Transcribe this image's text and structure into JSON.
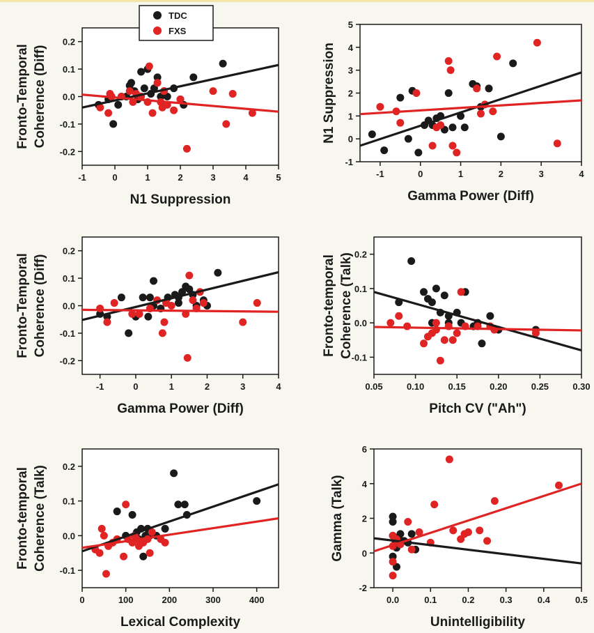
{
  "legend": {
    "entries": [
      {
        "label": "TDC",
        "color": "#1a1a1a"
      },
      {
        "label": "FXS",
        "color": "#e02424"
      }
    ]
  },
  "chart_data": [
    {
      "type": "scatter",
      "xlabel": "N1 Suppression",
      "ylabel": [
        "Fronto-Temporal",
        "Coherence (Diff)"
      ],
      "xlim": [
        -1,
        5
      ],
      "ylim": [
        -0.25,
        0.25
      ],
      "xticks": [
        -1,
        0,
        1,
        2,
        3,
        4,
        5
      ],
      "yticks": [
        0.2,
        0.1,
        0.0,
        -0.1,
        -0.2
      ],
      "xtick_labels": [
        "-1",
        "0",
        "1",
        "2",
        "3",
        "4",
        "5"
      ],
      "ytick_labels": [
        "0.2",
        "0.1",
        "0.0",
        "-0.1",
        "-0.2"
      ],
      "series": [
        {
          "name": "TDC",
          "color": "#1a1a1a",
          "x": [
            -0.5,
            -0.2,
            0.1,
            0.35,
            0.5,
            0.6,
            0.7,
            0.8,
            0.9,
            1.0,
            1.1,
            1.2,
            1.3,
            1.4,
            1.5,
            1.6,
            1.8,
            2.0,
            2.1,
            2.4,
            3.3,
            -0.05,
            0.2,
            0.45
          ],
          "y": [
            -0.03,
            -0.01,
            -0.03,
            0.0,
            0.05,
            0.02,
            -0.01,
            0.09,
            0.03,
            0.1,
            0.01,
            0.03,
            0.07,
            0.0,
            0.02,
            0.0,
            0.03,
            -0.01,
            -0.03,
            0.07,
            0.12,
            -0.1,
            0.0,
            0.04
          ]
        },
        {
          "name": "FXS",
          "color": "#e02424",
          "x": [
            -0.45,
            -0.15,
            -0.2,
            -0.1,
            0.2,
            0.45,
            0.55,
            0.65,
            0.8,
            1.0,
            1.05,
            1.15,
            1.3,
            1.4,
            1.45,
            1.5,
            1.6,
            1.8,
            2.0,
            2.2,
            3.0,
            3.4,
            3.6,
            4.2
          ],
          "y": [
            -0.04,
            0.01,
            -0.06,
            0.0,
            0.0,
            0.02,
            -0.02,
            0.01,
            0.0,
            -0.02,
            0.11,
            -0.06,
            0.05,
            -0.02,
            -0.04,
            0.02,
            -0.03,
            -0.05,
            -0.01,
            -0.19,
            0.02,
            -0.1,
            0.01,
            -0.06
          ]
        }
      ],
      "fits": [
        {
          "name": "TDC",
          "color": "#1a1a1a",
          "x": [
            -1,
            5
          ],
          "y": [
            -0.04,
            0.115
          ]
        },
        {
          "name": "FXS",
          "color": "#e02424",
          "x": [
            -1,
            5
          ],
          "y": [
            0.007,
            -0.055
          ]
        }
      ]
    },
    {
      "type": "scatter",
      "xlabel": "Gamma Power (Diff)",
      "ylabel": [
        "N1 Suppression"
      ],
      "xlim": [
        -1.5,
        4
      ],
      "ylim": [
        -1,
        5
      ],
      "xticks": [
        -1,
        0,
        1,
        2,
        3,
        4
      ],
      "yticks": [
        5,
        4,
        3,
        2,
        1,
        0,
        -1
      ],
      "xtick_labels": [
        "-1",
        "0",
        "1",
        "2",
        "3",
        "4"
      ],
      "ytick_labels": [
        "5",
        "4",
        "3",
        "2",
        "1",
        "0",
        "-1"
      ],
      "series": [
        {
          "name": "TDC",
          "color": "#1a1a1a",
          "x": [
            -1.2,
            -0.9,
            -0.5,
            -0.3,
            -0.2,
            0.1,
            0.2,
            0.3,
            0.4,
            0.5,
            0.6,
            0.7,
            0.8,
            1.0,
            1.1,
            1.3,
            1.4,
            1.5,
            1.7,
            2.0,
            2.3,
            -0.05
          ],
          "y": [
            0.2,
            -0.5,
            1.8,
            0.0,
            2.1,
            0.6,
            0.8,
            0.6,
            0.9,
            1.0,
            0.4,
            2.0,
            0.5,
            1.0,
            0.5,
            2.4,
            2.3,
            1.4,
            2.2,
            0.1,
            3.3,
            -0.6
          ]
        },
        {
          "name": "FXS",
          "color": "#e02424",
          "x": [
            -1.0,
            -0.6,
            -0.5,
            -0.1,
            0.3,
            0.4,
            0.5,
            0.7,
            0.75,
            0.8,
            0.9,
            1.4,
            1.5,
            1.6,
            1.8,
            1.9,
            2.9,
            3.4
          ],
          "y": [
            1.4,
            1.2,
            0.7,
            2.0,
            -0.3,
            0.5,
            0.6,
            3.4,
            3.0,
            -0.3,
            -0.6,
            2.2,
            1.1,
            1.5,
            1.2,
            3.6,
            4.2,
            -0.2
          ]
        }
      ],
      "fits": [
        {
          "name": "TDC",
          "color": "#1a1a1a",
          "x": [
            -1.5,
            4
          ],
          "y": [
            -0.3,
            2.9
          ]
        },
        {
          "name": "FXS",
          "color": "#e02424",
          "x": [
            -1.5,
            4
          ],
          "y": [
            1.08,
            1.68
          ]
        }
      ]
    },
    {
      "type": "scatter",
      "xlabel": "Gamma Power (Diff)",
      "ylabel": [
        "Fronto-Temporal",
        "Coherence (Diff)"
      ],
      "xlim": [
        -1.5,
        4
      ],
      "ylim": [
        -0.25,
        0.25
      ],
      "xticks": [
        -1,
        0,
        1,
        2,
        3,
        4
      ],
      "yticks": [
        0.2,
        0.1,
        0.0,
        -0.1,
        -0.2
      ],
      "xtick_labels": [
        "-1",
        "0",
        "1",
        "2",
        "3",
        "4"
      ],
      "ytick_labels": [
        "0.2",
        "0.1",
        "0.0",
        "-0.1",
        "-0.2"
      ],
      "series": [
        {
          "name": "TDC",
          "color": "#1a1a1a",
          "x": [
            -1.0,
            -0.8,
            -0.4,
            -0.2,
            0.0,
            0.2,
            0.35,
            0.4,
            0.5,
            0.7,
            0.9,
            1.1,
            1.2,
            1.3,
            1.4,
            1.5,
            1.6,
            1.7,
            1.9,
            2.0,
            2.3,
            0.5,
            1.2
          ],
          "y": [
            -0.03,
            -0.04,
            0.03,
            -0.1,
            -0.04,
            0.03,
            -0.04,
            0.03,
            0.09,
            -0.01,
            0.03,
            0.04,
            0.03,
            0.05,
            0.07,
            0.06,
            0.04,
            0.0,
            0.02,
            0.0,
            0.12,
            0.0,
            0.01
          ]
        },
        {
          "name": "FXS",
          "color": "#e02424",
          "x": [
            -1.0,
            -0.8,
            -0.6,
            -0.1,
            0.1,
            0.4,
            0.6,
            0.75,
            0.8,
            0.85,
            1.0,
            1.4,
            1.45,
            1.5,
            1.6,
            1.7,
            1.8,
            1.9,
            3.0,
            3.4
          ],
          "y": [
            -0.01,
            -0.06,
            0.01,
            -0.03,
            -0.03,
            -0.01,
            0.02,
            -0.1,
            -0.06,
            0.01,
            0.0,
            -0.03,
            -0.19,
            0.11,
            0.02,
            -0.01,
            0.05,
            0.01,
            -0.06,
            0.01
          ]
        }
      ],
      "fits": [
        {
          "name": "TDC",
          "color": "#1a1a1a",
          "x": [
            -1.5,
            4
          ],
          "y": [
            -0.052,
            0.122
          ]
        },
        {
          "name": "FXS",
          "color": "#e02424",
          "x": [
            -1.5,
            4
          ],
          "y": [
            -0.015,
            -0.022
          ]
        }
      ]
    },
    {
      "type": "scatter",
      "xlabel": "Pitch CV (\"Ah\")",
      "ylabel": [
        "Fronto-temporal",
        "Coherence (Talk)"
      ],
      "xlim": [
        0.05,
        0.3
      ],
      "ylim": [
        -0.15,
        0.25
      ],
      "xticks": [
        0.05,
        0.1,
        0.15,
        0.2,
        0.25,
        0.3
      ],
      "yticks": [
        0.2,
        0.1,
        0.0,
        -0.1
      ],
      "xtick_labels": [
        "0.05",
        "0.10",
        "0.15",
        "0.20",
        "0.25",
        "0.30"
      ],
      "ytick_labels": [
        "0.2",
        "0.1",
        "0.0",
        "-0.1"
      ],
      "series": [
        {
          "name": "TDC",
          "color": "#1a1a1a",
          "x": [
            0.08,
            0.095,
            0.11,
            0.115,
            0.12,
            0.125,
            0.13,
            0.135,
            0.14,
            0.15,
            0.155,
            0.16,
            0.17,
            0.175,
            0.18,
            0.19,
            0.2,
            0.245,
            0.12,
            0.14
          ],
          "y": [
            0.06,
            0.18,
            0.09,
            0.07,
            0.06,
            0.1,
            0.03,
            0.08,
            0.02,
            0.03,
            0.0,
            0.09,
            -0.01,
            0.0,
            -0.06,
            0.02,
            -0.02,
            -0.02,
            0.0,
            0.0
          ]
        },
        {
          "name": "FXS",
          "color": "#e02424",
          "x": [
            0.07,
            0.08,
            0.09,
            0.11,
            0.115,
            0.12,
            0.125,
            0.125,
            0.13,
            0.135,
            0.14,
            0.145,
            0.15,
            0.155,
            0.16,
            0.175,
            0.19,
            0.195,
            0.245
          ],
          "y": [
            0.0,
            0.02,
            -0.01,
            -0.06,
            -0.04,
            -0.03,
            0.0,
            -0.02,
            -0.11,
            -0.05,
            -0.01,
            -0.05,
            -0.03,
            0.09,
            -0.01,
            -0.01,
            -0.01,
            -0.02,
            -0.03
          ]
        }
      ],
      "fits": [
        {
          "name": "TDC",
          "color": "#1a1a1a",
          "x": [
            0.05,
            0.3
          ],
          "y": [
            0.09,
            -0.08
          ]
        },
        {
          "name": "FXS",
          "color": "#e02424",
          "x": [
            0.05,
            0.3
          ],
          "y": [
            -0.012,
            -0.022
          ]
        }
      ]
    },
    {
      "type": "scatter",
      "xlabel": "Lexical Complexity",
      "ylabel": [
        "Fronto-temporal",
        "Coherence (Talk)"
      ],
      "xlim": [
        0,
        450
      ],
      "ylim": [
        -0.15,
        0.25
      ],
      "xticks": [
        0,
        100,
        200,
        300,
        400
      ],
      "yticks": [
        0.2,
        0.1,
        0.0,
        -0.1
      ],
      "xtick_labels": [
        "0",
        "100",
        "200",
        "300",
        "400"
      ],
      "ytick_labels": [
        "0.2",
        "0.1",
        "0.0",
        "-0.1"
      ],
      "series": [
        {
          "name": "TDC",
          "color": "#1a1a1a",
          "x": [
            80,
            100,
            115,
            125,
            130,
            135,
            140,
            145,
            150,
            155,
            170,
            190,
            210,
            220,
            235,
            240,
            400
          ],
          "y": [
            0.07,
            0.0,
            0.06,
            0.01,
            -0.01,
            0.02,
            -0.06,
            0.0,
            0.02,
            0.0,
            0.0,
            0.02,
            0.18,
            0.09,
            0.09,
            0.06,
            0.1
          ]
        },
        {
          "name": "FXS",
          "color": "#e02424",
          "x": [
            30,
            40,
            45,
            50,
            55,
            60,
            70,
            80,
            95,
            100,
            105,
            115,
            120,
            125,
            130,
            140,
            150,
            155,
            160,
            180,
            190
          ],
          "y": [
            -0.04,
            -0.05,
            0.02,
            0.0,
            -0.11,
            -0.03,
            -0.02,
            -0.01,
            -0.06,
            0.09,
            -0.01,
            -0.02,
            0.0,
            -0.01,
            -0.03,
            -0.02,
            -0.01,
            -0.05,
            0.01,
            -0.01,
            -0.02
          ]
        }
      ],
      "fits": [
        {
          "name": "TDC",
          "color": "#1a1a1a",
          "x": [
            0,
            450
          ],
          "y": [
            -0.045,
            0.148
          ]
        },
        {
          "name": "FXS",
          "color": "#e02424",
          "x": [
            0,
            450
          ],
          "y": [
            -0.035,
            0.05
          ]
        }
      ]
    },
    {
      "type": "scatter",
      "xlabel": "Unintelligibility",
      "ylabel": [
        "Gamma (Talk)"
      ],
      "xlim": [
        -0.05,
        0.5
      ],
      "ylim": [
        -2,
        6
      ],
      "xticks": [
        0.0,
        0.1,
        0.2,
        0.3,
        0.4,
        0.5
      ],
      "yticks": [
        6,
        4,
        2,
        0,
        -2
      ],
      "xtick_labels": [
        "0.0",
        "0.1",
        "0.2",
        "0.3",
        "0.4",
        "0.5"
      ],
      "ytick_labels": [
        "6",
        "4",
        "2",
        "0",
        "-2"
      ],
      "series": [
        {
          "name": "TDC",
          "color": "#1a1a1a",
          "x": [
            0.0,
            0.0,
            0.0,
            0.005,
            0.01,
            0.015,
            0.02,
            0.03,
            0.04,
            0.05,
            0.06,
            0.0,
            0.01
          ],
          "y": [
            2.1,
            1.8,
            1.0,
            0.5,
            -0.8,
            0.9,
            1.1,
            0.7,
            0.6,
            1.1,
            0.2,
            -0.2,
            0.3
          ]
        },
        {
          "name": "FXS",
          "color": "#e02424",
          "x": [
            0.0,
            0.0,
            0.0,
            0.0,
            0.01,
            0.02,
            0.04,
            0.05,
            0.07,
            0.1,
            0.11,
            0.15,
            0.16,
            0.18,
            0.19,
            0.2,
            0.23,
            0.25,
            0.27,
            0.44
          ],
          "y": [
            -1.3,
            -0.5,
            0.4,
            1.0,
            0.8,
            0.5,
            1.8,
            0.2,
            1.2,
            0.6,
            2.8,
            5.4,
            1.3,
            0.8,
            1.1,
            1.2,
            1.3,
            0.7,
            3.0,
            3.9
          ]
        }
      ],
      "fits": [
        {
          "name": "TDC",
          "color": "#1a1a1a",
          "x": [
            -0.05,
            0.5
          ],
          "y": [
            0.85,
            -0.6
          ]
        },
        {
          "name": "FXS",
          "color": "#e02424",
          "x": [
            -0.05,
            0.5
          ],
          "y": [
            0.1,
            4.0
          ]
        }
      ]
    }
  ]
}
